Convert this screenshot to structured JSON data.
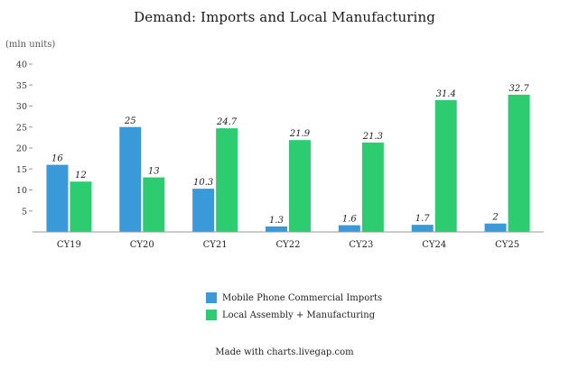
{
  "chart_data": {
    "type": "bar",
    "title": "Demand: Imports and Local Manufacturing",
    "ylabel": "(mln units)",
    "ylim": [
      0,
      40
    ],
    "yticks": [
      "5",
      "10",
      "15",
      "20",
      "25",
      "30",
      "35",
      "40"
    ],
    "categories": [
      "CY19",
      "CY20",
      "CY21",
      "CY22",
      "CY23",
      "CY24",
      "CY25"
    ],
    "series": [
      {
        "name": "Mobile Phone Commercial Imports",
        "values": [
          16,
          25,
          10.3,
          1.3,
          1.6,
          1.7,
          2
        ],
        "labels": [
          "16",
          "25",
          "10.3",
          "1.3",
          "1.6",
          "1.7",
          "2"
        ],
        "color": "#3a9ad9"
      },
      {
        "name": "Local Assembly + Manufacturing",
        "values": [
          12,
          13,
          24.7,
          21.9,
          21.3,
          31.4,
          32.7
        ],
        "labels": [
          "12",
          "13",
          "24.7",
          "21.9",
          "21.3",
          "31.4",
          "32.7"
        ],
        "color": "#2ecc71"
      }
    ],
    "grid": false,
    "legend_position": "bottom"
  },
  "footer": "Made with charts.livegap.com"
}
